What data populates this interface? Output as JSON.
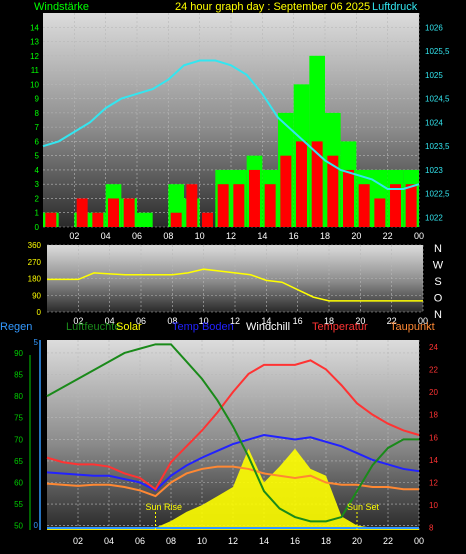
{
  "header": {
    "left_title": "Windstärke",
    "center_title": "24 hour graph day : September 06 2025",
    "right_title": "Luftdruck"
  },
  "colors": {
    "wind_gust": "#00ff00",
    "wind_avg": "#ff0000",
    "pressure": "#33e6f0",
    "wind_dir": "#ffff00",
    "humidity": "#1a8a1a",
    "solar": "#ffff00",
    "temp_ground": "#2222ff",
    "windchill": "#ffffff",
    "temperature": "#ff3333",
    "dewpoint": "#ff8833",
    "rain": "#3399ff"
  },
  "chart_data": [
    {
      "id": "wind_pressure",
      "type": "line",
      "title": "24 hour graph day : September 06 2025",
      "x_ticks": [
        "02",
        "04",
        "06",
        "08",
        "10",
        "12",
        "14",
        "16",
        "18",
        "20",
        "22",
        "00"
      ],
      "y_left": {
        "label": "Windstärke",
        "ticks": [
          0,
          1,
          2,
          3,
          4,
          5,
          6,
          7,
          8,
          9,
          10,
          11,
          12,
          13,
          14
        ],
        "range": [
          0,
          15
        ]
      },
      "y_right": {
        "label": "Luftdruck",
        "ticks": [
          "1022",
          "1022,5",
          "1023",
          "1023,5",
          "1024",
          "1024,5",
          "1025",
          "1025,5",
          "1026"
        ],
        "range": [
          1021.8,
          1026.3
        ]
      },
      "x_hours": [
        0,
        1,
        2,
        3,
        4,
        5,
        6,
        7,
        8,
        9,
        10,
        11,
        12,
        13,
        14,
        15,
        16,
        17,
        18,
        19,
        20,
        21,
        22,
        23,
        24
      ],
      "series": [
        {
          "key": "gust",
          "kind": "wind",
          "values": [
            1,
            0,
            1,
            1,
            3,
            2,
            1,
            0,
            3,
            2,
            0,
            4,
            4,
            5,
            4,
            8,
            10,
            12,
            8,
            6,
            4,
            4,
            4,
            4,
            4
          ]
        },
        {
          "key": "avg",
          "kind": "wind",
          "values": [
            1,
            0,
            2,
            1,
            2,
            2,
            0,
            0,
            1,
            3,
            1,
            3,
            3,
            4,
            3,
            5,
            6,
            6,
            5,
            4,
            3,
            2,
            3,
            3,
            3
          ]
        },
        {
          "key": "pressure",
          "kind": "pressure",
          "values": [
            1023.5,
            1023.6,
            1023.8,
            1024.0,
            1024.3,
            1024.5,
            1024.6,
            1024.7,
            1024.9,
            1025.2,
            1025.3,
            1025.3,
            1025.2,
            1025.0,
            1024.6,
            1024.1,
            1023.8,
            1023.5,
            1023.2,
            1023.0,
            1022.9,
            1022.8,
            1022.6,
            1022.6,
            1022.7
          ]
        }
      ]
    },
    {
      "id": "wind_direction",
      "type": "line",
      "x_ticks": [
        "02",
        "04",
        "06",
        "08",
        "10",
        "12",
        "14",
        "16",
        "18",
        "20",
        "22",
        "00"
      ],
      "y_left": {
        "ticks": [
          0,
          90,
          180,
          270,
          360
        ],
        "range": [
          0,
          360
        ]
      },
      "y_right_labels": [
        "N",
        "W",
        "S",
        "O",
        "N"
      ],
      "x_hours": [
        0,
        1,
        2,
        3,
        4,
        5,
        6,
        7,
        8,
        9,
        10,
        11,
        12,
        13,
        14,
        15,
        16,
        17,
        18,
        19,
        20,
        21,
        22,
        23,
        24
      ],
      "series": [
        {
          "key": "direction",
          "values": [
            175,
            175,
            175,
            210,
            205,
            200,
            200,
            200,
            200,
            210,
            230,
            220,
            210,
            200,
            170,
            160,
            120,
            80,
            60,
            60,
            60,
            60,
            60,
            60,
            60
          ]
        }
      ]
    },
    {
      "id": "temp_humidity",
      "type": "line",
      "legend": [
        {
          "key": "rain",
          "label": "Regen"
        },
        {
          "key": "humidity",
          "label": "Luftfeuchte"
        },
        {
          "key": "solar",
          "label": "Solar"
        },
        {
          "key": "temp_ground",
          "label": "Temp Boden"
        },
        {
          "key": "windchill",
          "label": "Windchill"
        },
        {
          "key": "temperature",
          "label": "Temperatur"
        },
        {
          "key": "dewpoint",
          "label": "Taupunkt"
        }
      ],
      "x_ticks": [
        "02",
        "04",
        "06",
        "08",
        "10",
        "12",
        "14",
        "16",
        "18",
        "20",
        "22",
        "00"
      ],
      "y_left": {
        "ticks": [
          50,
          55,
          60,
          65,
          70,
          75,
          80,
          85,
          90
        ],
        "range": [
          49,
          93
        ]
      },
      "y_right": {
        "ticks": [
          8,
          10,
          12,
          14,
          16,
          18,
          20,
          22,
          24
        ],
        "range": [
          7.8,
          24.6
        ]
      },
      "y_rain_tick": "5",
      "y_rain_zero": "0",
      "annotations": [
        {
          "text": "Sun Rise",
          "hour": 7.0
        },
        {
          "text": "Sun Set",
          "hour": 20.0
        }
      ],
      "x_hours": [
        0,
        1,
        2,
        3,
        4,
        5,
        6,
        7,
        8,
        9,
        10,
        11,
        12,
        13,
        14,
        15,
        16,
        17,
        18,
        19,
        20,
        21,
        22,
        23,
        24
      ],
      "series": [
        {
          "key": "humidity",
          "axis": "left",
          "values": [
            80,
            82,
            84,
            86,
            88,
            90,
            91,
            92,
            92,
            88,
            84,
            79,
            73,
            66,
            58,
            54,
            52,
            51,
            51,
            52,
            58,
            64,
            68,
            70,
            70
          ]
        },
        {
          "key": "temperature",
          "axis": "right",
          "values": [
            14.2,
            13.8,
            13.6,
            13.6,
            13.4,
            12.8,
            12.4,
            11.4,
            13.8,
            15.2,
            16.6,
            18.2,
            20.0,
            21.6,
            22.4,
            22.4,
            22.4,
            22.8,
            22.0,
            20.6,
            19.0,
            18.0,
            17.2,
            16.6,
            16.2
          ]
        },
        {
          "key": "temp_ground",
          "axis": "right",
          "values": [
            12.9,
            12.8,
            12.7,
            12.6,
            12.6,
            12.3,
            12.0,
            11.3,
            12.6,
            13.5,
            14.2,
            14.8,
            15.4,
            15.8,
            16.2,
            16.0,
            15.8,
            16.0,
            15.6,
            15.2,
            14.6,
            14.0,
            13.6,
            13.2,
            13.0
          ]
        },
        {
          "key": "dewpoint",
          "axis": "right",
          "values": [
            11.9,
            11.8,
            11.7,
            11.8,
            11.8,
            11.6,
            11.3,
            10.8,
            12.0,
            12.8,
            13.2,
            13.4,
            13.4,
            13.2,
            12.8,
            12.6,
            12.4,
            12.6,
            12.0,
            11.8,
            11.8,
            11.6,
            11.6,
            11.4,
            11.4
          ]
        },
        {
          "key": "solar",
          "axis": "right",
          "values": [
            8,
            8,
            8,
            8,
            8,
            8,
            8,
            8,
            8.6,
            9.4,
            10.0,
            10.8,
            11.6,
            15.0,
            12.0,
            13.4,
            15.0,
            13.2,
            12.6,
            9.0,
            8.2,
            8,
            8,
            8,
            8
          ]
        },
        {
          "key": "rain",
          "axis": "rain",
          "values": [
            0,
            0,
            0,
            0,
            0,
            0,
            0,
            0,
            0,
            0,
            0,
            0,
            0,
            0,
            0,
            0,
            0,
            0,
            0,
            0,
            0,
            0,
            0,
            0,
            0
          ]
        }
      ]
    }
  ]
}
